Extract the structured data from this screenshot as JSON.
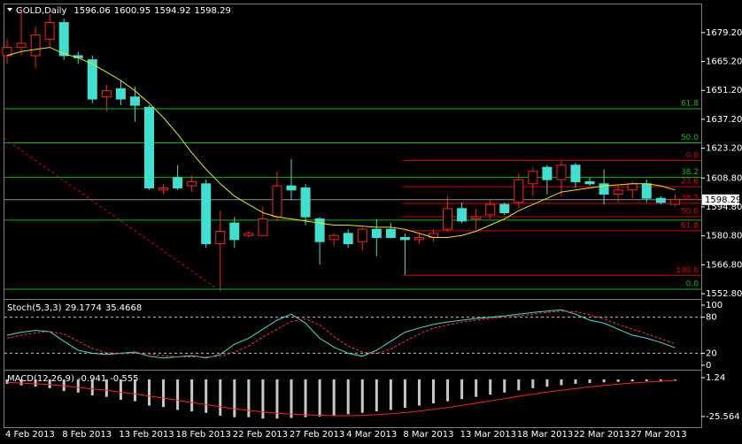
{
  "symbol": "GOLD,Daily",
  "chart_data": [
    {
      "type": "candlestick",
      "categories": [
        "4 Feb 2013",
        null,
        null,
        null,
        "8 Feb 2013",
        null,
        null,
        null,
        "13 Feb 2013",
        null,
        null,
        null,
        "18 Feb 2013",
        null,
        null,
        null,
        "22 Feb 2013",
        null,
        null,
        null,
        "27 Feb 2013",
        null,
        null,
        null,
        "4 Mar 2013",
        null,
        null,
        null,
        "8 Mar 2013",
        null,
        null,
        null,
        "13 Mar 2013",
        null,
        null,
        null,
        "18 Mar 2013",
        null,
        null,
        null,
        "22 Mar 2013",
        null,
        null,
        null,
        "27 Mar 2013",
        null,
        null,
        null
      ],
      "open": [
        1668,
        1672,
        1668,
        1676,
        1684,
        1668,
        1666,
        1648,
        1652,
        1648,
        1643,
        1603,
        1609,
        1605,
        1606,
        1577,
        1587,
        1581,
        1581,
        1590,
        1605,
        1604,
        1589,
        1579,
        1582,
        1578,
        1584,
        1584,
        1580,
        1579,
        1580,
        1584,
        1594,
        1589,
        1591,
        1596,
        1597,
        1606,
        1614,
        1608,
        1615,
        1607,
        1606,
        1601,
        1603,
        1606,
        1599,
        1596.06
      ],
      "high": [
        1676,
        1690,
        1682,
        1688,
        1686,
        1670,
        1668,
        1654,
        1656,
        1653,
        1644,
        1606,
        1615,
        1610,
        1608,
        1593,
        1590,
        1583,
        1595,
        1612,
        1618,
        1606,
        1590,
        1582,
        1584,
        1585,
        1589,
        1587,
        1582,
        1582,
        1584,
        1600,
        1597,
        1594,
        1598,
        1597,
        1611,
        1614,
        1615,
        1617,
        1616,
        1609,
        1613,
        1605,
        1607,
        1608,
        1600,
        1600.95
      ],
      "low": [
        1664,
        1668,
        1662,
        1672,
        1666,
        1664,
        1645,
        1641,
        1644,
        1636,
        1603,
        1601,
        1603,
        1602,
        1575,
        1554,
        1575,
        1580,
        1581,
        1588,
        1598,
        1586,
        1567,
        1576,
        1575,
        1574,
        1571,
        1580,
        1562,
        1577,
        1578,
        1583,
        1587,
        1584,
        1589,
        1591,
        1594,
        1600,
        1601,
        1600,
        1604,
        1605,
        1596,
        1597,
        1599,
        1597,
        1596,
        1594.92
      ],
      "close": [
        1672,
        1674,
        1678,
        1684,
        1668,
        1667,
        1647,
        1651,
        1647,
        1644,
        1604,
        1604,
        1604,
        1607,
        1577,
        1583,
        1579,
        1582,
        1589,
        1605,
        1603,
        1590,
        1578,
        1581,
        1577,
        1584,
        1580,
        1580,
        1579,
        1580,
        1582,
        1594,
        1588,
        1590,
        1596,
        1592,
        1608,
        1612,
        1608,
        1615,
        1607,
        1606,
        1601,
        1603,
        1606,
        1599,
        1597,
        1598.29
      ],
      "bull_color": "#ff2020",
      "bear_color": "#40e0d0",
      "ma": {
        "color": "#e8e800",
        "values": [
          1668,
          1670,
          1671,
          1672,
          1669,
          1667,
          1664,
          1660,
          1656,
          1651,
          1645,
          1638,
          1630,
          1621,
          1613,
          1606,
          1600,
          1596,
          1592,
          1590,
          1589,
          1588,
          1587,
          1586,
          1586,
          1585.5,
          1585,
          1585,
          1584,
          1582,
          1580,
          1580,
          1581,
          1583,
          1586,
          1589,
          1593,
          1596,
          1599,
          1602,
          1603,
          1604,
          1605,
          1605.5,
          1606,
          1606,
          1605,
          1603
        ]
      },
      "ylim": [
        1550.7,
        1692.8
      ],
      "yticks": [
        {
          "value": 1679.2,
          "label": "1679.20"
        },
        {
          "value": 1665.2,
          "label": "1665.20"
        },
        {
          "value": 1651.2,
          "label": "1651.20"
        },
        {
          "value": 1637.2,
          "label": "1637.20"
        },
        {
          "value": 1623.2,
          "label": "1623.20"
        },
        {
          "value": 1608.8,
          "label": "1608.80"
        },
        {
          "value": 1594.8,
          "label": "1594.80"
        },
        {
          "value": 1580.8,
          "label": "1580.80"
        },
        {
          "value": 1566.8,
          "label": "1566.80"
        },
        {
          "value": 1552.8,
          "label": "1552.80"
        }
      ],
      "fib_green": {
        "color": "#00c000",
        "levels": [
          {
            "label": "61.8",
            "price": 1642.3
          },
          {
            "label": "50.0",
            "price": 1625.8
          },
          {
            "label": "38.2",
            "price": 1609.2
          },
          {
            "label": "0.0",
            "price": 1555
          }
        ],
        "extra_lines": [
          1588.4
        ]
      },
      "fib_red": {
        "color": "#e00000",
        "levels": [
          {
            "label": "0.0",
            "price": 1617.3
          },
          {
            "label": "23.6",
            "price": 1604.6
          },
          {
            "label": "38.2",
            "price": 1596.5
          },
          {
            "label": "50.0",
            "price": 1590.1
          },
          {
            "label": "61.8",
            "price": 1583.3
          },
          {
            "label": "100.0",
            "price": 1561.7
          }
        ]
      },
      "trendline": {
        "color": "#e00000",
        "x": [
          -0.2,
          14.6
        ],
        "y": [
          1628,
          1556
        ]
      }
    },
    {
      "type": "stochastic",
      "title": "Stoch(5,3,3)",
      "series": [
        {
          "color": "#40e0d0",
          "values": [
            50,
            55,
            58,
            56,
            40,
            25,
            20,
            18,
            20,
            22,
            15,
            12,
            14,
            16,
            12,
            18,
            35,
            45,
            60,
            75,
            85,
            70,
            45,
            30,
            20,
            15,
            25,
            40,
            55,
            62,
            68,
            72,
            75,
            78,
            80,
            82,
            85,
            88,
            90,
            92,
            85,
            75,
            70,
            60,
            50,
            45,
            38,
            29.1774
          ]
        },
        {
          "color": "#ff3030",
          "values": [
            45,
            50,
            54,
            56,
            52,
            40,
            28,
            21,
            19,
            20,
            19,
            16,
            14,
            14,
            14,
            15,
            22,
            32,
            47,
            60,
            73,
            77,
            67,
            48,
            32,
            22,
            20,
            27,
            40,
            52,
            62,
            67,
            72,
            75,
            78,
            80,
            82,
            85,
            88,
            90,
            89,
            84,
            77,
            68,
            60,
            52,
            44,
            35.4668
          ]
        }
      ],
      "ylim": [
        -5.9,
        105.9
      ],
      "yticks": [
        100,
        80,
        20,
        0
      ],
      "levels": [
        80,
        20
      ]
    },
    {
      "type": "macd",
      "title": "MACD(12,26,9)",
      "series": [
        {
          "color": "#c8c8c8",
          "values": [
            -3,
            -4,
            -5,
            -6,
            -8,
            -9,
            -11,
            -12,
            -14,
            -15,
            -18,
            -19,
            -21,
            -22,
            -23,
            -25,
            -26,
            -26,
            -27,
            -27,
            -26.5,
            -26,
            -25.5,
            -25,
            -24,
            -23,
            -22,
            -21,
            -19.5,
            -18,
            -16.5,
            -15,
            -13.5,
            -12,
            -10.5,
            -9,
            -7.5,
            -6,
            -5,
            -4,
            -3,
            -2.5,
            -2,
            -1.6,
            -1.3,
            -1.1,
            -1,
            -0.941
          ]
        },
        {
          "color": "#ff2020",
          "values": [
            -2,
            -2.5,
            -3,
            -3.5,
            -4.5,
            -5.5,
            -6.5,
            -7.5,
            -8.8,
            -10,
            -11.5,
            -12.8,
            -14.4,
            -15.9,
            -17.3,
            -18.8,
            -20.2,
            -21.3,
            -22.4,
            -23.3,
            -23.9,
            -24.4,
            -24.7,
            -25,
            -25,
            -24.8,
            -24.3,
            -23.6,
            -22.8,
            -21.8,
            -20.6,
            -19.3,
            -17.9,
            -16.4,
            -14.8,
            -13.2,
            -11.6,
            -10.1,
            -8.7,
            -7.4,
            -6.2,
            -5.1,
            -4.1,
            -3.2,
            -2.4,
            -1.8,
            -1.3,
            -0.555
          ]
        }
      ],
      "ylim": [
        -32.3,
        5.5
      ],
      "yticks": [
        1.24,
        -25.564
      ]
    }
  ]
}
